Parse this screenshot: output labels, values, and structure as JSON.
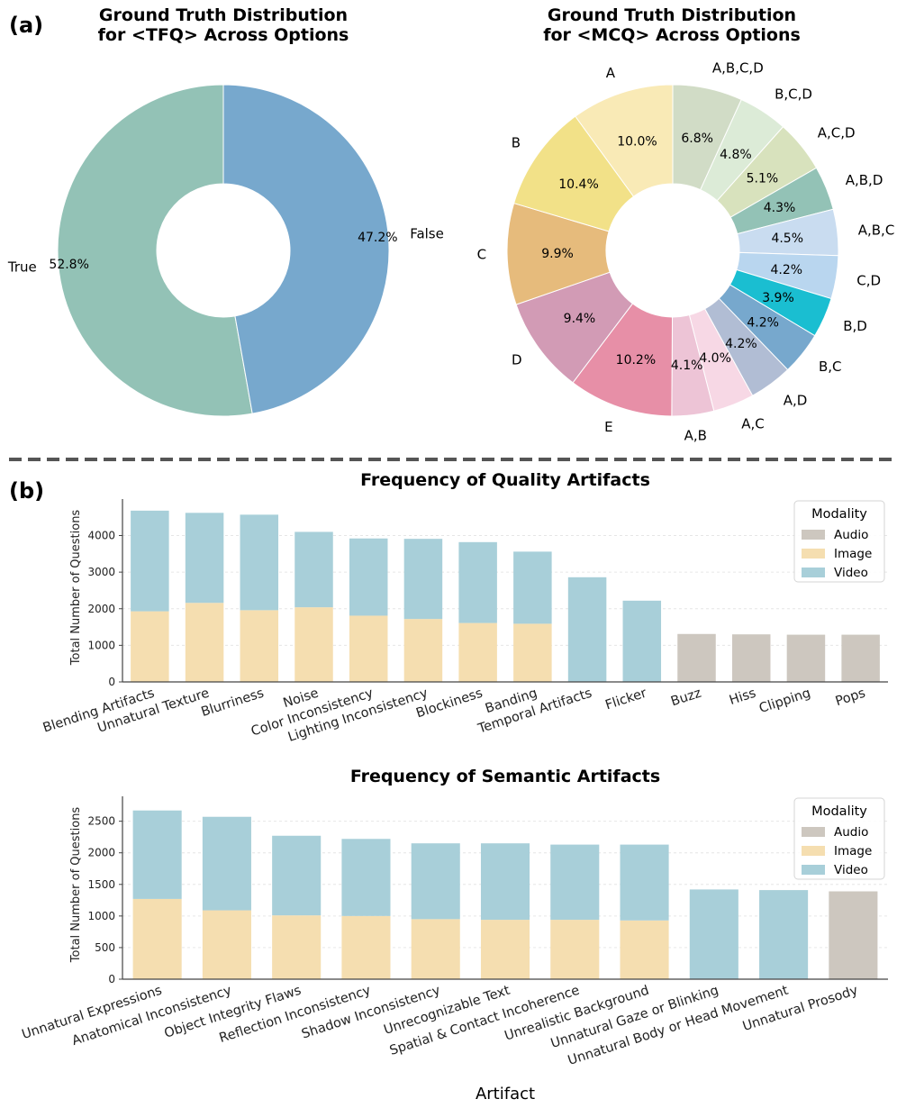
{
  "panel_labels": {
    "a": "(a)",
    "b": "(b)"
  },
  "colors": {
    "audio": "#cdc7bf",
    "image": "#f5deb0",
    "video": "#a8cfd9",
    "grid": "#e6e6e6",
    "axis": "#444444"
  },
  "chart_data": [
    {
      "type": "pie",
      "title_lines": [
        "Ground Truth Distribution",
        "for <TFQ> Across Options"
      ],
      "labels": [
        "True",
        "False"
      ],
      "values": [
        52.8,
        47.2
      ],
      "value_labels": [
        "52.8%",
        "47.2%"
      ],
      "colors": [
        "#93c2b6",
        "#77a8cd"
      ]
    },
    {
      "type": "pie",
      "title_lines": [
        "Ground Truth Distribution",
        "for <MCQ> Across Options"
      ],
      "labels": [
        "A,B,C,D",
        "B,C,D",
        "A,C,D",
        "A,B,D",
        "A,B,C",
        "C,D",
        "B,D",
        "B,C",
        "A,D",
        "A,C",
        "A,B",
        "E",
        "D",
        "C",
        "B",
        "A"
      ],
      "values": [
        6.8,
        4.8,
        5.1,
        4.3,
        4.5,
        4.2,
        3.9,
        4.2,
        4.2,
        4.0,
        4.1,
        10.2,
        9.4,
        9.9,
        10.4,
        10.0
      ],
      "value_labels": [
        "6.8%",
        "4.8%",
        "5.1%",
        "4.3%",
        "4.5%",
        "4.2%",
        "3.9%",
        "4.2%",
        "4.2%",
        "4.0%",
        "4.1%",
        "10.2%",
        "9.4%",
        "9.9%",
        "10.4%",
        "10.0%"
      ],
      "colors": [
        "#d1dcc6",
        "#dcebd7",
        "#d8e2bd",
        "#93c2b6",
        "#c9dcf0",
        "#b9d6ef",
        "#1abed1",
        "#77a8cd",
        "#b1bdd4",
        "#f7d8e5",
        "#edc4d6",
        "#e78fa7",
        "#d29bb5",
        "#e6bb7c",
        "#f2e188",
        "#f9eab6"
      ]
    },
    {
      "type": "bar",
      "stacked": true,
      "title": "Frequency of Quality Artifacts",
      "ylabel": "Total Number of Questions",
      "xlabel": "",
      "ylim": [
        0,
        4800
      ],
      "yticks": [
        0,
        1000,
        2000,
        3000,
        4000
      ],
      "categories": [
        "Blending Artifacts",
        "Unnatural Texture",
        "Blurriness",
        "Noise",
        "Color Inconsistency",
        "Lighting Inconsistency",
        "Blockiness",
        "Banding",
        "Temporal Artifacts",
        "Flicker",
        "Buzz",
        "Hiss",
        "Clipping",
        "Pops"
      ],
      "series": [
        {
          "name": "Audio",
          "values": [
            0,
            0,
            0,
            0,
            0,
            0,
            0,
            0,
            0,
            0,
            1310,
            1300,
            1290,
            1290
          ]
        },
        {
          "name": "Image",
          "values": [
            1930,
            2160,
            1960,
            2040,
            1810,
            1720,
            1610,
            1590,
            0,
            0,
            0,
            0,
            0,
            0
          ]
        },
        {
          "name": "Video",
          "values": [
            2750,
            2460,
            2610,
            2060,
            2110,
            2190,
            2210,
            1970,
            2860,
            2220,
            0,
            0,
            0,
            0
          ]
        }
      ],
      "legend": {
        "title": "Modality",
        "position": "top-right",
        "entries": [
          "Audio",
          "Image",
          "Video"
        ]
      }
    },
    {
      "type": "bar",
      "stacked": true,
      "title": "Frequency of Semantic Artifacts",
      "ylabel": "Total Number of Questions",
      "xlabel": "Artifact",
      "ylim": [
        0,
        2780
      ],
      "yticks": [
        0,
        500,
        1000,
        1500,
        2000,
        2500
      ],
      "categories": [
        "Unnatural Expressions",
        "Anatomical Inconsistency",
        "Object Integrity Flaws",
        "Reflection Inconsistency",
        "Shadow Inconsistency",
        "Unrecognizable Text",
        "Spatial & Contact Incoherence",
        "Unrealistic Background",
        "Unnatural Gaze or Blinking",
        "Unnatural Body or Head Movement",
        "Unnatural Prosody"
      ],
      "series": [
        {
          "name": "Audio",
          "values": [
            0,
            0,
            0,
            0,
            0,
            0,
            0,
            0,
            0,
            0,
            1390
          ]
        },
        {
          "name": "Image",
          "values": [
            1270,
            1090,
            1010,
            1000,
            950,
            940,
            940,
            930,
            0,
            0,
            0
          ]
        },
        {
          "name": "Video",
          "values": [
            1400,
            1480,
            1260,
            1220,
            1200,
            1210,
            1190,
            1200,
            1420,
            1410,
            0
          ]
        }
      ],
      "legend": {
        "title": "Modality",
        "position": "top-right",
        "entries": [
          "Audio",
          "Image",
          "Video"
        ]
      }
    }
  ]
}
